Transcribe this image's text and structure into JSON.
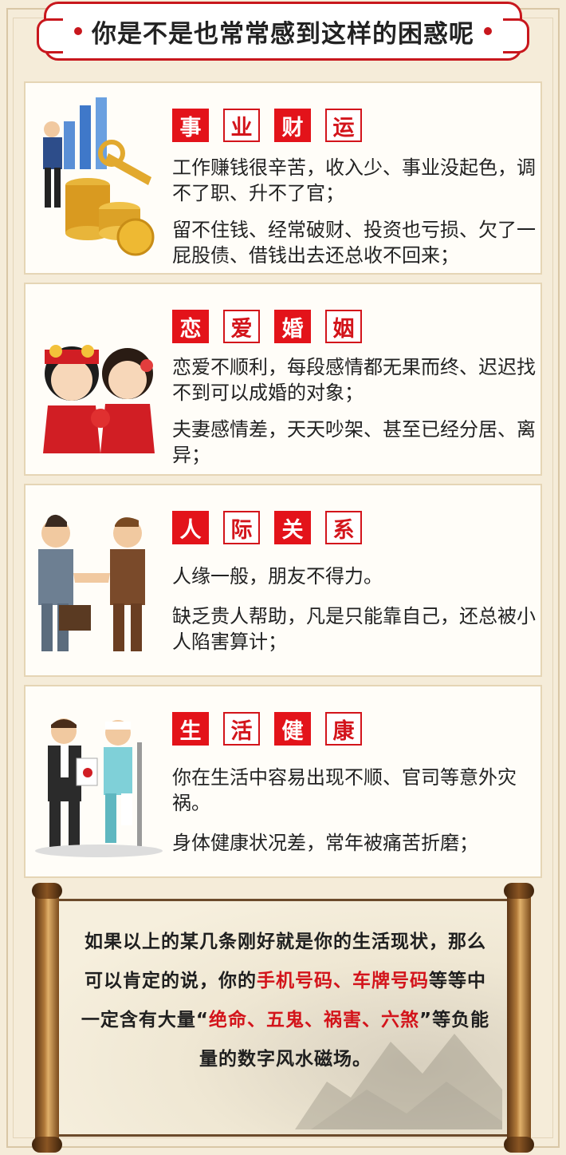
{
  "header": {
    "title": "你是不是也常常感到这样的困惑呢"
  },
  "cards": [
    {
      "tags": [
        "事",
        "业",
        "财",
        "运"
      ],
      "lines": [
        "工作赚钱很辛苦，收入少、事业没起色，调不了职、升不了官；",
        "留不住钱、经常破财、投资也亏损、欠了一屁股债、借钱出去还总收不回来；"
      ],
      "illustration": "businessman-with-coins-icon"
    },
    {
      "tags": [
        "恋",
        "爱",
        "婚",
        "姻"
      ],
      "lines": [
        "恋爱不顺利，每段感情都无果而终、迟迟找不到可以成婚的对象；",
        "夫妻感情差，天天吵架、甚至已经分居、离异；"
      ],
      "illustration": "wedding-couple-icon"
    },
    {
      "tags": [
        "人",
        "际",
        "关",
        "系"
      ],
      "lines": [
        "人缘一般，朋友不得力。",
        "缺乏贵人帮助，凡是只能靠自己，还总被小人陷害算计；"
      ],
      "illustration": "handshake-icon"
    },
    {
      "tags": [
        "生",
        "活",
        "健",
        "康"
      ],
      "lines": [
        "你在生活中容易出现不顺、官司等意外灾祸。",
        "身体健康状况差，常年被痛苦折磨；"
      ],
      "illustration": "injured-person-icon"
    }
  ],
  "scroll": {
    "segments": [
      {
        "text": "如果以上的某几条刚好就是你的生活现状，那么可以肯定的说，你的",
        "red": false
      },
      {
        "text": "手机号码、车牌号码",
        "red": true
      },
      {
        "text": "等等中一定含有大量“",
        "red": false
      },
      {
        "text": "绝命、五鬼、祸害、六煞",
        "red": true
      },
      {
        "text": "”等负能量的数字风水磁场。",
        "red": false
      }
    ]
  },
  "colors": {
    "accent": "#d3141b",
    "background": "#f5ecd9",
    "card_border": "#e5d5b5"
  }
}
